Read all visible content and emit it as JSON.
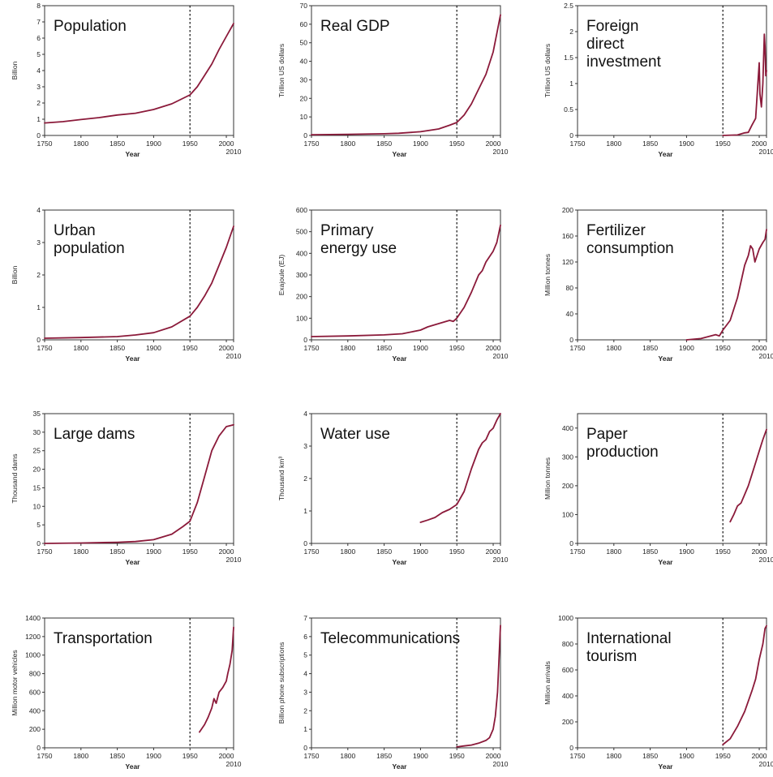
{
  "colors": {
    "line": "#8b1a3a",
    "axis": "#333333",
    "text": "#111111"
  },
  "chart_data": [
    {
      "type": "line",
      "title": "Population",
      "ylabel": "Billion",
      "xlabel": "Year",
      "xlim": [
        1750,
        2010
      ],
      "ylim": [
        0,
        8
      ],
      "yticks": [
        "0",
        "1",
        "2",
        "3",
        "4",
        "5",
        "6",
        "7",
        "8"
      ],
      "xticks": [
        "1750",
        "1800",
        "1850",
        "1900",
        "1950",
        "2000"
      ],
      "x_end_label": "2010",
      "reference_line_x": 1950,
      "series": [
        {
          "x": [
            1750,
            1775,
            1800,
            1825,
            1850,
            1875,
            1900,
            1925,
            1950,
            1960,
            1970,
            1980,
            1990,
            2000,
            2010
          ],
          "y": [
            0.77,
            0.85,
            0.98,
            1.1,
            1.26,
            1.37,
            1.6,
            1.95,
            2.5,
            3.0,
            3.7,
            4.4,
            5.3,
            6.1,
            6.9
          ]
        }
      ]
    },
    {
      "type": "line",
      "title": "Real GDP",
      "ylabel": "Trillion US dollars",
      "xlabel": "Year",
      "xlim": [
        1750,
        2010
      ],
      "ylim": [
        0,
        70
      ],
      "yticks": [
        "0",
        "10",
        "20",
        "30",
        "40",
        "50",
        "60",
        "70"
      ],
      "xticks": [
        "1750",
        "1800",
        "1850",
        "1900",
        "1950",
        "2000"
      ],
      "x_end_label": "2010",
      "reference_line_x": 1950,
      "series": [
        {
          "x": [
            1750,
            1800,
            1850,
            1870,
            1900,
            1913,
            1925,
            1940,
            1950,
            1960,
            1970,
            1980,
            1990,
            2000,
            2005,
            2010
          ],
          "y": [
            0.4,
            0.6,
            0.9,
            1.2,
            2.0,
            2.8,
            3.5,
            5.5,
            7.0,
            11,
            17,
            25,
            33,
            45,
            55,
            65
          ]
        }
      ]
    },
    {
      "type": "line",
      "title": "Foreign direct investment",
      "ylabel": "Trillion US dollars",
      "xlabel": "Year",
      "xlim": [
        1750,
        2010
      ],
      "ylim": [
        0,
        2.5
      ],
      "yticks": [
        "0",
        "0.5",
        "1",
        "1.5",
        "2",
        "2.5"
      ],
      "xticks": [
        "1750",
        "1800",
        "1850",
        "1900",
        "1950",
        "2000"
      ],
      "x_end_label": "2010",
      "reference_line_x": 1950,
      "series": [
        {
          "x": [
            1950,
            1970,
            1980,
            1985,
            1990,
            1995,
            2000,
            2001,
            2003,
            2005,
            2007,
            2008,
            2009,
            2010
          ],
          "y": [
            0.0,
            0.01,
            0.05,
            0.06,
            0.2,
            0.33,
            1.4,
            0.8,
            0.55,
            1.0,
            1.95,
            1.7,
            1.15,
            1.25
          ]
        }
      ]
    },
    {
      "type": "line",
      "title": "Urban population",
      "ylabel": "Billion",
      "xlabel": "Year",
      "xlim": [
        1750,
        2010
      ],
      "ylim": [
        0,
        4
      ],
      "yticks": [
        "0",
        "1",
        "2",
        "3",
        "4"
      ],
      "xticks": [
        "1750",
        "1800",
        "1850",
        "1900",
        "1950",
        "2000"
      ],
      "x_end_label": "2010",
      "reference_line_x": 1950,
      "series": [
        {
          "x": [
            1750,
            1800,
            1850,
            1875,
            1900,
            1925,
            1950,
            1960,
            1970,
            1980,
            1990,
            2000,
            2010
          ],
          "y": [
            0.05,
            0.07,
            0.1,
            0.15,
            0.22,
            0.4,
            0.73,
            1.0,
            1.35,
            1.75,
            2.3,
            2.85,
            3.5
          ]
        }
      ]
    },
    {
      "type": "line",
      "title": "Primary energy use",
      "ylabel": "Exajoule (EJ)",
      "xlabel": "Year",
      "xlim": [
        1750,
        2010
      ],
      "ylim": [
        0,
        600
      ],
      "yticks": [
        "0",
        "100",
        "200",
        "300",
        "400",
        "500",
        "600"
      ],
      "xticks": [
        "1750",
        "1800",
        "1850",
        "1900",
        "1950",
        "2000"
      ],
      "x_end_label": "2010",
      "reference_line_x": 1950,
      "series": [
        {
          "x": [
            1750,
            1800,
            1850,
            1875,
            1900,
            1910,
            1925,
            1940,
            1945,
            1950,
            1960,
            1970,
            1980,
            1985,
            1990,
            2000,
            2005,
            2010
          ],
          "y": [
            15,
            18,
            23,
            28,
            45,
            60,
            75,
            90,
            85,
            100,
            150,
            220,
            300,
            320,
            360,
            410,
            450,
            530
          ]
        }
      ]
    },
    {
      "type": "line",
      "title": "Fertilizer consumption",
      "ylabel": "Million tonnes",
      "xlabel": "Year",
      "xlim": [
        1750,
        2010
      ],
      "ylim": [
        0,
        200
      ],
      "yticks": [
        "0",
        "40",
        "80",
        "120",
        "160",
        "200"
      ],
      "xticks": [
        "1750",
        "1800",
        "1850",
        "1900",
        "1950",
        "2000"
      ],
      "x_end_label": "2010",
      "reference_line_x": 1950,
      "series": [
        {
          "x": [
            1900,
            1920,
            1930,
            1940,
            1945,
            1950,
            1960,
            1970,
            1980,
            1985,
            1988,
            1991,
            1994,
            2000,
            2005,
            2008,
            2010
          ],
          "y": [
            0,
            2,
            5,
            8,
            6,
            15,
            30,
            65,
            115,
            130,
            145,
            140,
            120,
            140,
            150,
            155,
            170
          ]
        }
      ]
    },
    {
      "type": "line",
      "title": "Large dams",
      "ylabel": "Thousand dams",
      "xlabel": "Year",
      "xlim": [
        1750,
        2010
      ],
      "ylim": [
        0,
        35
      ],
      "yticks": [
        "0",
        "5",
        "10",
        "15",
        "20",
        "25",
        "30",
        "35"
      ],
      "xticks": [
        "1750",
        "1800",
        "1850",
        "1900",
        "1950",
        "2000"
      ],
      "x_end_label": "2010",
      "reference_line_x": 1950,
      "series": [
        {
          "x": [
            1750,
            1800,
            1850,
            1875,
            1900,
            1925,
            1940,
            1950,
            1960,
            1970,
            1980,
            1990,
            2000,
            2010
          ],
          "y": [
            0,
            0.1,
            0.3,
            0.5,
            1.0,
            2.5,
            4.5,
            6.0,
            11,
            18,
            25,
            29,
            31.5,
            32
          ]
        }
      ]
    },
    {
      "type": "line",
      "title": "Water use",
      "ylabel": "Thousand km³",
      "xlabel": "Year",
      "xlim": [
        1750,
        2010
      ],
      "ylim": [
        0,
        4
      ],
      "yticks": [
        "0",
        "1",
        "2",
        "3",
        "4"
      ],
      "xticks": [
        "1750",
        "1800",
        "1850",
        "1900",
        "1950",
        "2000"
      ],
      "x_end_label": "2010",
      "reference_line_x": 1950,
      "series": [
        {
          "x": [
            1900,
            1910,
            1920,
            1930,
            1940,
            1950,
            1960,
            1970,
            1980,
            1985,
            1990,
            1995,
            2000,
            2005,
            2010
          ],
          "y": [
            0.65,
            0.72,
            0.8,
            0.95,
            1.05,
            1.2,
            1.6,
            2.3,
            2.9,
            3.1,
            3.2,
            3.45,
            3.55,
            3.8,
            4.0
          ]
        }
      ]
    },
    {
      "type": "line",
      "title": "Paper production",
      "ylabel": "Million tonnes",
      "xlabel": "Year",
      "xlim": [
        1750,
        2010
      ],
      "ylim": [
        0,
        450
      ],
      "yticks": [
        "0",
        "100",
        "200",
        "300",
        "400"
      ],
      "xticks": [
        "1750",
        "1800",
        "1850",
        "1900",
        "1950",
        "2000"
      ],
      "x_end_label": "2010",
      "reference_line_x": 1950,
      "series": [
        {
          "x": [
            1960,
            1965,
            1970,
            1975,
            1980,
            1985,
            1990,
            1995,
            2000,
            2005,
            2010
          ],
          "y": [
            75,
            100,
            130,
            140,
            170,
            200,
            240,
            280,
            320,
            360,
            395
          ]
        }
      ]
    },
    {
      "type": "line",
      "title": "Transportation",
      "ylabel": "Million motor vehicles",
      "xlabel": "Year",
      "xlim": [
        1750,
        2010
      ],
      "ylim": [
        0,
        1400
      ],
      "yticks": [
        "0",
        "200",
        "400",
        "600",
        "800",
        "1000",
        "1200",
        "1400"
      ],
      "xticks": [
        "1750",
        "1800",
        "1850",
        "1900",
        "1950",
        "2000"
      ],
      "x_end_label": "2010",
      "reference_line_x": 1950,
      "series": [
        {
          "x": [
            1963,
            1970,
            1975,
            1980,
            1983,
            1986,
            1990,
            1995,
            2000,
            2002,
            2005,
            2008,
            2010
          ],
          "y": [
            170,
            250,
            330,
            430,
            530,
            480,
            600,
            650,
            720,
            800,
            900,
            1050,
            1300
          ]
        }
      ]
    },
    {
      "type": "line",
      "title": "Telecommunications",
      "ylabel": "Billion phone subscriptions",
      "xlabel": "Year",
      "xlim": [
        1750,
        2010
      ],
      "ylim": [
        0,
        7
      ],
      "yticks": [
        "0",
        "1",
        "2",
        "3",
        "4",
        "5",
        "6",
        "7"
      ],
      "xticks": [
        "1750",
        "1800",
        "1850",
        "1900",
        "1950",
        "2000"
      ],
      "x_end_label": "2010",
      "reference_line_x": 1950,
      "series": [
        {
          "x": [
            1950,
            1960,
            1970,
            1980,
            1990,
            1995,
            2000,
            2003,
            2006,
            2008,
            2010
          ],
          "y": [
            0.05,
            0.1,
            0.15,
            0.25,
            0.4,
            0.55,
            1.0,
            1.7,
            3.0,
            4.8,
            6.6
          ]
        }
      ]
    },
    {
      "type": "line",
      "title": "International tourism",
      "ylabel": "Million arrivals",
      "xlabel": "Year",
      "xlim": [
        1750,
        2010
      ],
      "ylim": [
        0,
        1000
      ],
      "yticks": [
        "0",
        "200",
        "400",
        "600",
        "800",
        "1000"
      ],
      "xticks": [
        "1750",
        "1800",
        "1850",
        "1900",
        "1950",
        "2000"
      ],
      "x_end_label": "2010",
      "reference_line_x": 1950,
      "series": [
        {
          "x": [
            1950,
            1960,
            1970,
            1980,
            1990,
            1995,
            2000,
            2005,
            2008,
            2010
          ],
          "y": [
            25,
            70,
            165,
            280,
            440,
            530,
            680,
            800,
            920,
            940
          ]
        }
      ]
    }
  ]
}
